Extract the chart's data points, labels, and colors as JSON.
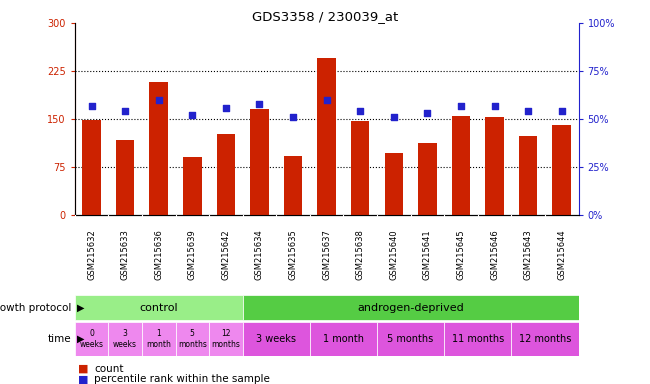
{
  "title": "GDS3358 / 230039_at",
  "samples": [
    "GSM215632",
    "GSM215633",
    "GSM215636",
    "GSM215639",
    "GSM215642",
    "GSM215634",
    "GSM215635",
    "GSM215637",
    "GSM215638",
    "GSM215640",
    "GSM215641",
    "GSM215645",
    "GSM215646",
    "GSM215643",
    "GSM215644"
  ],
  "counts": [
    148,
    118,
    208,
    90,
    127,
    165,
    93,
    245,
    147,
    97,
    112,
    155,
    153,
    123,
    140
  ],
  "percentiles": [
    57,
    54,
    60,
    52,
    56,
    58,
    51,
    60,
    54,
    51,
    53,
    57,
    57,
    54,
    54
  ],
  "ylim_left": [
    0,
    300
  ],
  "ylim_right": [
    0,
    100
  ],
  "yticks_left": [
    0,
    75,
    150,
    225,
    300
  ],
  "yticks_right": [
    0,
    25,
    50,
    75,
    100
  ],
  "bar_color": "#cc2200",
  "dot_color": "#2222cc",
  "background_color": "#ffffff",
  "plot_bg": "#ffffff",
  "xticklabel_bg": "#cccccc",
  "grid_color": "#000000",
  "control_label": "control",
  "control_count": 5,
  "control_color": "#99ee88",
  "androgen_label": "androgen-deprived",
  "androgen_count": 10,
  "androgen_color": "#55cc44",
  "time_labels_control": [
    "0\nweeks",
    "3\nweeks",
    "1\nmonth",
    "5\nmonths",
    "12\nmonths"
  ],
  "time_labels_androgen": [
    "3 weeks",
    "1 month",
    "5 months",
    "11 months",
    "12 months"
  ],
  "time_widths_androgen": [
    2,
    2,
    2,
    2,
    2
  ],
  "time_color_control": "#ee88ee",
  "time_color_androgen": "#dd55dd",
  "protocol_row_label": "growth protocol",
  "time_row_label": "time",
  "legend_count_label": "count",
  "legend_pct_label": "percentile rank within the sample",
  "legend_count_color": "#cc2200",
  "legend_dot_color": "#2222cc"
}
